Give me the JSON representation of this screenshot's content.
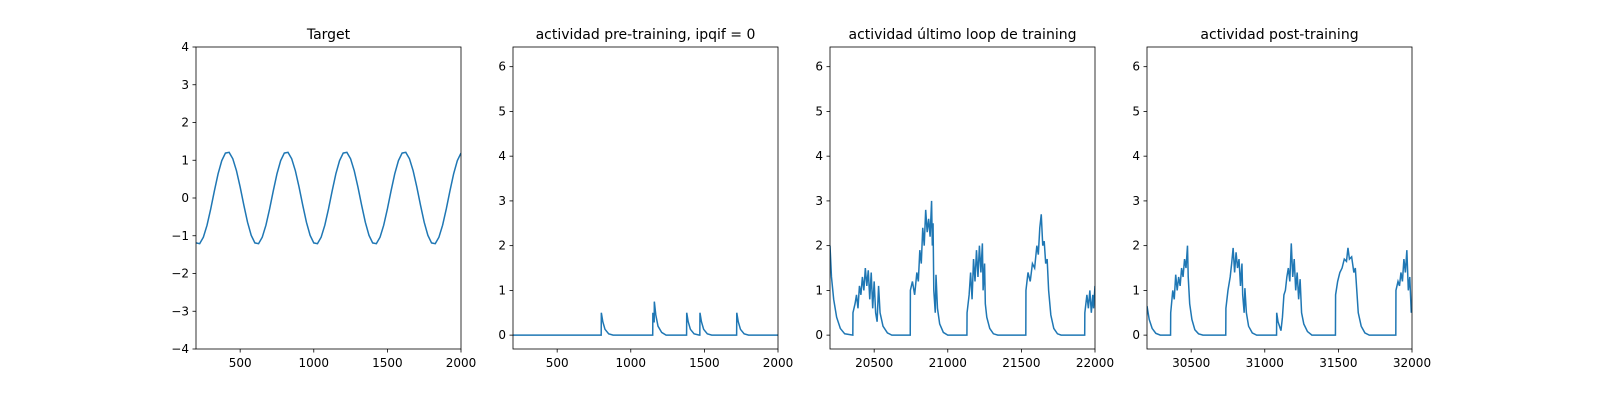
{
  "chart_data": [
    {
      "type": "line",
      "title": "Target",
      "color": "#1f77b4",
      "x": [
        200,
        225,
        250,
        275,
        300,
        325,
        350,
        375,
        400,
        425,
        450,
        475,
        500,
        525,
        550,
        575,
        600,
        625,
        650,
        675,
        700,
        725,
        750,
        775,
        800,
        825,
        850,
        875,
        900,
        925,
        950,
        975,
        1000,
        1025,
        1050,
        1075,
        1100,
        1125,
        1150,
        1175,
        1200,
        1225,
        1250,
        1275,
        1300,
        1325,
        1350,
        1375,
        1400,
        1425,
        1450,
        1475,
        1500,
        1525,
        1550,
        1575,
        1600,
        1625,
        1650,
        1675,
        1700,
        1725,
        1750,
        1775,
        1800,
        1825,
        1850,
        1875,
        1900,
        1925,
        1950,
        1975,
        2000
      ],
      "values": [
        -1.19,
        -1.21,
        -1.04,
        -0.72,
        -0.29,
        0.19,
        0.64,
        0.99,
        1.19,
        1.21,
        1.04,
        0.72,
        0.29,
        -0.19,
        -0.64,
        -0.99,
        -1.19,
        -1.21,
        -1.04,
        -0.72,
        -0.29,
        0.19,
        0.64,
        0.99,
        1.19,
        1.21,
        1.04,
        0.72,
        0.29,
        -0.19,
        -0.64,
        -0.99,
        -1.19,
        -1.21,
        -1.04,
        -0.72,
        -0.29,
        0.19,
        0.64,
        0.99,
        1.19,
        1.21,
        1.04,
        0.72,
        0.29,
        -0.19,
        -0.64,
        -0.99,
        -1.19,
        -1.21,
        -1.04,
        -0.72,
        -0.29,
        0.19,
        0.64,
        0.99,
        1.19,
        1.21,
        1.04,
        0.72,
        0.29,
        -0.19,
        -0.64,
        -0.99,
        -1.19,
        -1.21,
        -1.04,
        -0.72,
        -0.29,
        0.19,
        0.64,
        0.99,
        1.19
      ],
      "xlim": [
        200,
        2000
      ],
      "xticks": [
        500,
        1000,
        1500,
        2000
      ],
      "ylim": [
        -4,
        4
      ],
      "yticks": [
        {
          "value": -4,
          "label": "−4"
        },
        {
          "value": -3,
          "label": "−3"
        },
        {
          "value": -2,
          "label": "−2"
        },
        {
          "value": -1,
          "label": "−1"
        },
        0,
        1,
        2,
        3,
        4
      ]
    },
    {
      "type": "line",
      "title": "actividad pre-training, ipqif = 0",
      "color": "#1f77b4",
      "x": [
        200,
        799,
        800,
        810,
        825,
        850,
        880,
        1149,
        1150,
        1158,
        1159,
        1160,
        1170,
        1185,
        1210,
        1240,
        1379,
        1380,
        1390,
        1405,
        1430,
        1465,
        1469,
        1470,
        1480,
        1495,
        1520,
        1550,
        1719,
        1720,
        1730,
        1745,
        1770,
        1800,
        2000
      ],
      "values": [
        0,
        0,
        0.5,
        0.3,
        0.13,
        0.03,
        0,
        0,
        0.5,
        0.3,
        0.3,
        0.75,
        0.45,
        0.2,
        0.06,
        0,
        0,
        0.5,
        0.3,
        0.13,
        0.03,
        0,
        0,
        0.5,
        0.3,
        0.13,
        0.03,
        0,
        0,
        0.5,
        0.3,
        0.13,
        0.03,
        0,
        0
      ],
      "xlim": [
        200,
        2000
      ],
      "xticks": [
        500,
        1000,
        1500,
        2000
      ],
      "ylim": [
        -0.31,
        6.44
      ],
      "yticks": [
        0,
        1,
        2,
        3,
        4,
        5,
        6
      ]
    },
    {
      "type": "line",
      "title": "actividad último loop de training",
      "color": "#1f77b4",
      "x": [
        20200,
        20210,
        20225,
        20245,
        20270,
        20300,
        20355,
        20356,
        20370,
        20380,
        20390,
        20400,
        20410,
        20420,
        20430,
        20440,
        20450,
        20460,
        20470,
        20480,
        20490,
        20500,
        20510,
        20520,
        20530,
        20540,
        20560,
        20590,
        20620,
        20745,
        20746,
        20760,
        20775,
        20790,
        20800,
        20810,
        20820,
        20830,
        20840,
        20850,
        20860,
        20870,
        20880,
        20890,
        20895,
        20900,
        20905,
        20915,
        20920,
        20930,
        20945,
        20970,
        21000,
        21130,
        21131,
        21145,
        21155,
        21165,
        21175,
        21185,
        21195,
        21205,
        21215,
        21225,
        21235,
        21240,
        21250,
        21255,
        21265,
        21285,
        21310,
        21340,
        21530,
        21531,
        21545,
        21560,
        21575,
        21590,
        21605,
        21615,
        21625,
        21635,
        21645,
        21655,
        21665,
        21675,
        21685,
        21700,
        21720,
        21745,
        21770,
        21930,
        21931,
        21945,
        21955,
        21965,
        21975,
        21985,
        21990,
        22000
      ],
      "values": [
        2.0,
        1.3,
        0.8,
        0.4,
        0.15,
        0.03,
        0,
        0.5,
        0.7,
        0.9,
        0.6,
        1.1,
        0.9,
        1.3,
        1.0,
        1.5,
        1.1,
        1.45,
        0.8,
        1.4,
        0.6,
        1.2,
        0.5,
        0.3,
        1.1,
        0.5,
        0.2,
        0.05,
        0,
        0,
        1.0,
        1.2,
        0.9,
        1.4,
        1.2,
        1.9,
        1.6,
        2.4,
        2.0,
        2.8,
        2.3,
        2.6,
        2.2,
        3.0,
        2.0,
        2.5,
        1.0,
        0.5,
        1.35,
        0.6,
        0.25,
        0.06,
        0,
        0,
        0.5,
        0.9,
        1.4,
        0.8,
        1.7,
        1.2,
        1.9,
        1.3,
        2.0,
        1.4,
        2.05,
        1.0,
        1.6,
        0.7,
        0.4,
        0.15,
        0.03,
        0,
        0,
        1.0,
        1.4,
        1.2,
        1.6,
        1.5,
        2.0,
        1.8,
        2.4,
        2.7,
        2.0,
        2.1,
        1.6,
        1.7,
        1.0,
        0.45,
        0.15,
        0.03,
        0,
        0,
        0.5,
        0.9,
        0.6,
        1.0,
        0.5,
        0.9,
        0.6,
        1.1
      ],
      "xlim": [
        20200,
        22000
      ],
      "xticks": [
        20500,
        21000,
        21500,
        22000
      ],
      "ylim": [
        -0.31,
        6.44
      ],
      "yticks": [
        0,
        1,
        2,
        3,
        4,
        5,
        6
      ]
    },
    {
      "type": "line",
      "title": "actividad post-training",
      "color": "#1f77b4",
      "x": [
        30200,
        30215,
        30235,
        30260,
        30290,
        30360,
        30361,
        30375,
        30385,
        30395,
        30405,
        30415,
        30425,
        30435,
        30445,
        30455,
        30465,
        30475,
        30480,
        30490,
        30505,
        30525,
        30550,
        30580,
        30735,
        30736,
        30750,
        30765,
        30775,
        30785,
        30795,
        30805,
        30815,
        30825,
        30835,
        30845,
        30850,
        30860,
        30865,
        30875,
        30890,
        30915,
        30945,
        31080,
        31081,
        31090,
        31110,
        31120,
        31130,
        31140,
        31150,
        31160,
        31170,
        31180,
        31190,
        31200,
        31210,
        31220,
        31230,
        31240,
        31250,
        31265,
        31290,
        31320,
        31480,
        31481,
        31495,
        31510,
        31525,
        31540,
        31555,
        31565,
        31575,
        31590,
        31605,
        31615,
        31625,
        31635,
        31655,
        31680,
        31710,
        31890,
        31891,
        31905,
        31915,
        31925,
        31935,
        31945,
        31955,
        31965,
        31975,
        31985,
        31995,
        32000
      ],
      "values": [
        0.65,
        0.35,
        0.15,
        0.04,
        0,
        0,
        0.5,
        1.0,
        0.8,
        1.35,
        1.0,
        1.3,
        1.1,
        1.5,
        1.3,
        1.7,
        1.5,
        2.0,
        1.3,
        0.7,
        0.35,
        0.12,
        0.03,
        0,
        0,
        0.6,
        1.0,
        1.3,
        1.6,
        1.95,
        1.4,
        1.85,
        1.5,
        1.7,
        1.1,
        1.6,
        0.9,
        0.5,
        1.05,
        0.5,
        0.2,
        0.05,
        0,
        0,
        0.5,
        0.3,
        0.1,
        0.4,
        0.9,
        1.0,
        1.3,
        1.5,
        1.2,
        2.05,
        1.3,
        1.7,
        1.0,
        1.4,
        0.8,
        1.25,
        0.5,
        0.25,
        0.08,
        0,
        0,
        0.9,
        1.2,
        1.4,
        1.5,
        1.7,
        1.65,
        1.95,
        1.7,
        1.75,
        1.4,
        1.5,
        1.0,
        0.5,
        0.2,
        0.05,
        0,
        0,
        1.0,
        1.2,
        1.1,
        1.4,
        1.2,
        1.7,
        1.4,
        1.9,
        1.0,
        1.3,
        0.5,
        0.6
      ],
      "xlim": [
        30200,
        32000
      ],
      "xticks": [
        30500,
        31000,
        31500,
        32000
      ],
      "ylim": [
        -0.31,
        6.44
      ],
      "yticks": [
        0,
        1,
        2,
        3,
        4,
        5,
        6
      ]
    }
  ]
}
